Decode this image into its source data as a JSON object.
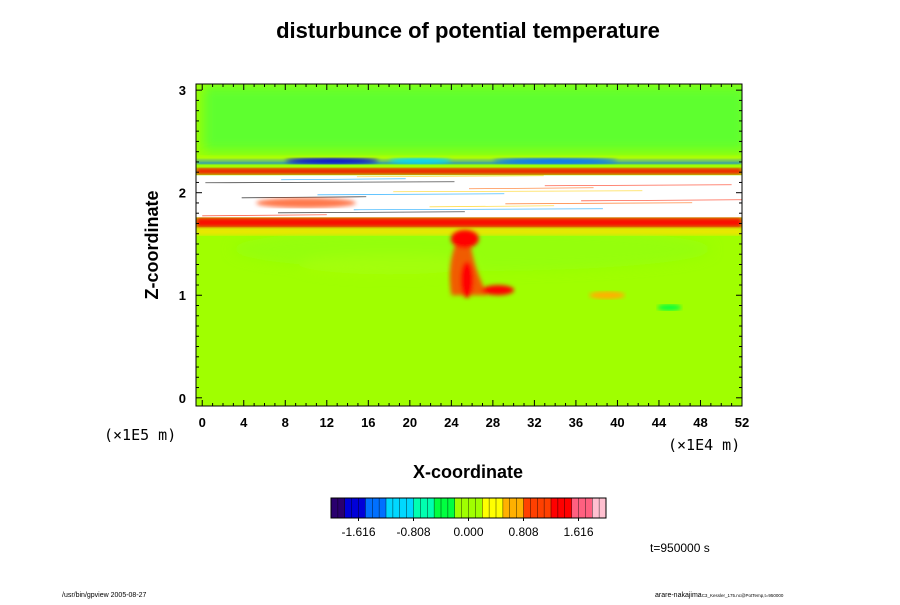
{
  "chart_data": {
    "type": "heatmap",
    "title": "disturbunce of potential temperature",
    "xlabel": "X-coordinate",
    "ylabel": "Z-coordinate",
    "x_unit": "(×1E4 m)",
    "y_unit": "(×1E5 m)",
    "xlim": [
      0,
      52
    ],
    "ylim": [
      0,
      3
    ],
    "x_ticks": [
      "0",
      "4",
      "8",
      "12",
      "16",
      "20",
      "24",
      "28",
      "32",
      "36",
      "40",
      "44",
      "48",
      "52"
    ],
    "y_ticks": [
      "0",
      "1",
      "2",
      "3"
    ],
    "colorbar": {
      "labels": [
        "-1.616",
        "-0.808",
        "0.000",
        "0.808",
        "1.616"
      ],
      "min": -2.02,
      "max": 2.02,
      "colors": [
        "#2a006e",
        "#0000d8",
        "#0070ff",
        "#00d8ff",
        "#00ffb0",
        "#00ff40",
        "#a0ff00",
        "#ffff00",
        "#ffb000",
        "#ff4000",
        "#ff0000",
        "#ff6080",
        "#ffc0d0"
      ]
    },
    "time_label": "t=950000 s",
    "background_value": 0.1,
    "bands": [
      {
        "z": [
          2.18,
          2.24
        ],
        "value": 1.2,
        "note": "upper warm band"
      },
      {
        "z": [
          2.28,
          2.33
        ],
        "value": -1.4,
        "note": "upper cool band"
      },
      {
        "z": [
          1.66,
          1.76
        ],
        "value": 1.3,
        "note": "lower warm band"
      }
    ],
    "white_region": {
      "z": [
        1.76,
        2.17
      ]
    },
    "plume": {
      "x": 25,
      "z": [
        1.0,
        1.55
      ],
      "value": 0.9
    }
  },
  "footer": {
    "left": "/usr/bin/gpview 2005-08-27",
    "right_main": "arare-nakajima",
    "right_small": "C3_Kessler_175.nc@PotTemp,t=950000"
  }
}
